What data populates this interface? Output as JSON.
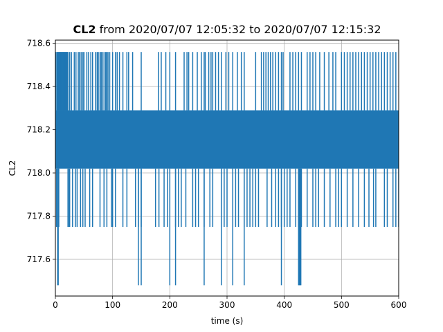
{
  "chart_data": {
    "type": "line",
    "title": {
      "bold": "CL2",
      "rest": " from 2020/07/07 12:05:32 to 2020/07/07 12:15:32"
    },
    "xlabel": "time (s)",
    "ylabel": "CL2",
    "xlim": [
      0,
      600
    ],
    "ylim": [
      717.43,
      718.615
    ],
    "x_ticks": [
      0,
      100,
      200,
      300,
      400,
      500,
      600
    ],
    "y_ticks": [
      717.6,
      717.8,
      718.0,
      718.2,
      718.4,
      718.6
    ],
    "y_tick_labels": [
      "717.6",
      "717.8",
      "718.0",
      "718.2",
      "718.4",
      "718.6"
    ],
    "grid": true,
    "series": [
      {
        "color": "#1f77b4",
        "levels": [
          717.48,
          717.75,
          718.02,
          718.29,
          718.56
        ],
        "dense_band": [
          718.02,
          718.29
        ],
        "spikes_to_718_56": [
          1,
          3,
          4,
          5,
          6,
          7,
          8,
          9,
          10,
          11,
          12,
          13,
          14,
          15,
          16,
          17,
          18,
          19,
          20,
          21,
          22,
          25,
          28,
          33,
          36,
          40,
          42,
          45,
          48,
          50,
          55,
          58,
          62,
          65,
          70,
          73,
          75,
          78,
          80,
          82,
          85,
          88,
          90,
          92,
          95,
          100,
          105,
          108,
          112,
          118,
          125,
          128,
          135,
          150,
          180,
          185,
          193,
          200,
          210,
          225,
          230,
          233,
          240,
          248,
          255,
          260,
          262,
          268,
          272,
          275,
          280,
          285,
          290,
          298,
          303,
          310,
          318,
          325,
          330,
          350,
          360,
          364,
          368,
          372,
          376,
          380,
          385,
          390,
          395,
          398,
          410,
          415,
          420,
          425,
          430,
          440,
          445,
          450,
          455,
          462,
          470,
          478,
          485,
          490,
          500,
          505,
          510,
          515,
          520,
          525,
          530,
          535,
          540,
          545,
          550,
          555,
          560,
          565,
          570,
          575,
          580,
          585,
          590,
          595
        ],
        "dips_to_717_75": [
          2,
          5,
          6,
          22,
          23,
          25,
          30,
          35,
          38,
          44,
          48,
          52,
          60,
          65,
          78,
          85,
          90,
          98,
          100,
          105,
          118,
          125,
          140,
          145,
          150,
          175,
          181,
          190,
          196,
          210,
          215,
          220,
          228,
          240,
          245,
          250,
          260,
          270,
          275,
          290,
          295,
          300,
          310,
          315,
          320,
          330,
          335,
          340,
          345,
          350,
          355,
          370,
          378,
          385,
          390,
          395,
          400,
          405,
          410,
          420,
          425,
          430,
          440,
          450,
          455,
          460,
          470,
          480,
          490,
          495,
          500,
          510,
          520,
          530,
          540,
          548,
          556,
          560,
          575,
          580,
          590,
          595,
          600
        ],
        "dips_to_717_48": [
          4,
          5,
          145,
          150,
          200,
          210,
          260,
          290,
          310,
          330,
          395,
          425,
          426,
          427,
          428,
          429
        ]
      }
    ]
  }
}
